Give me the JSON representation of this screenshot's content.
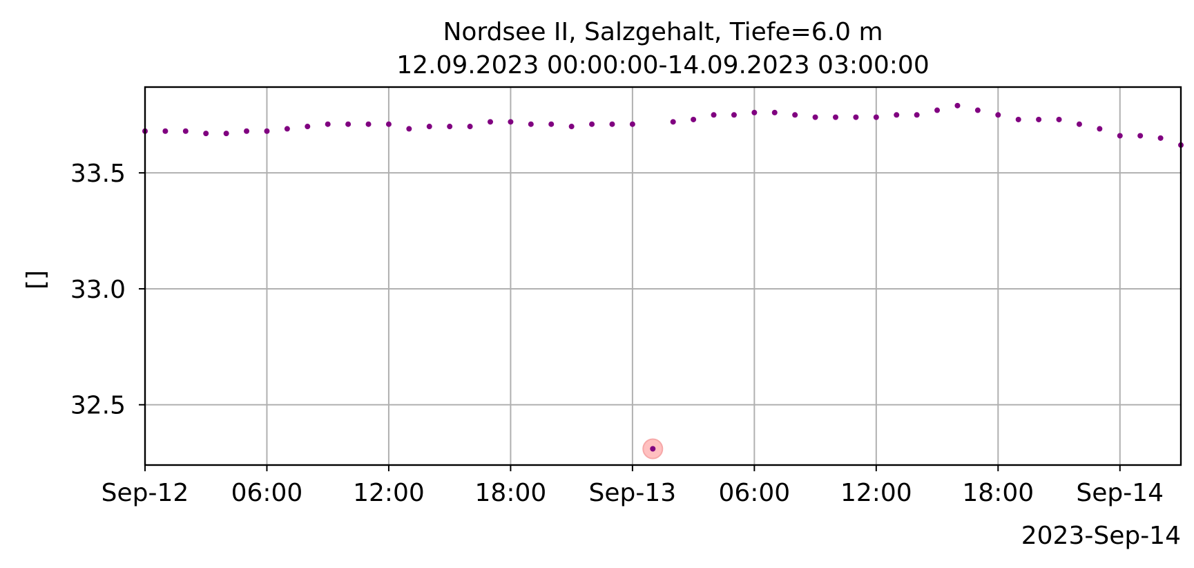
{
  "chart_data": {
    "type": "scatter",
    "title": "Nordsee II, Salzgehalt, Tiefe=6.0 m",
    "subtitle": "12.09.2023 00:00:00-14.09.2023 03:00:00",
    "xlabel": "",
    "ylabel": "[]",
    "x_offset_label": "2023-Sep-14",
    "xlim": [
      "2023-09-12 00:00",
      "2023-09-14 03:00"
    ],
    "ylim": [
      32.24,
      33.87
    ],
    "grid": true,
    "x_ticks": [
      {
        "value": "2023-09-12 00:00",
        "label": "Sep-12"
      },
      {
        "value": "2023-09-12 06:00",
        "label": "06:00"
      },
      {
        "value": "2023-09-12 12:00",
        "label": "12:00"
      },
      {
        "value": "2023-09-12 18:00",
        "label": "18:00"
      },
      {
        "value": "2023-09-13 00:00",
        "label": "Sep-13"
      },
      {
        "value": "2023-09-13 06:00",
        "label": "06:00"
      },
      {
        "value": "2023-09-13 12:00",
        "label": "12:00"
      },
      {
        "value": "2023-09-13 18:00",
        "label": "18:00"
      },
      {
        "value": "2023-09-14 00:00",
        "label": "Sep-14"
      }
    ],
    "y_ticks": [
      {
        "value": 32.5,
        "label": "32.5"
      },
      {
        "value": 33.0,
        "label": "33.0"
      },
      {
        "value": 33.5,
        "label": "33.5"
      }
    ],
    "series": [
      {
        "color": "#800080",
        "x": [
          "2023-09-12 00:00",
          "2023-09-12 01:00",
          "2023-09-12 02:00",
          "2023-09-12 03:00",
          "2023-09-12 04:00",
          "2023-09-12 05:00",
          "2023-09-12 06:00",
          "2023-09-12 07:00",
          "2023-09-12 08:00",
          "2023-09-12 09:00",
          "2023-09-12 10:00",
          "2023-09-12 11:00",
          "2023-09-12 12:00",
          "2023-09-12 13:00",
          "2023-09-12 14:00",
          "2023-09-12 15:00",
          "2023-09-12 16:00",
          "2023-09-12 17:00",
          "2023-09-12 18:00",
          "2023-09-12 19:00",
          "2023-09-12 20:00",
          "2023-09-12 21:00",
          "2023-09-12 22:00",
          "2023-09-12 23:00",
          "2023-09-13 00:00",
          "2023-09-13 01:00",
          "2023-09-13 02:00",
          "2023-09-13 03:00",
          "2023-09-13 04:00",
          "2023-09-13 05:00",
          "2023-09-13 06:00",
          "2023-09-13 07:00",
          "2023-09-13 08:00",
          "2023-09-13 09:00",
          "2023-09-13 10:00",
          "2023-09-13 11:00",
          "2023-09-13 12:00",
          "2023-09-13 13:00",
          "2023-09-13 14:00",
          "2023-09-13 15:00",
          "2023-09-13 16:00",
          "2023-09-13 17:00",
          "2023-09-13 18:00",
          "2023-09-13 19:00",
          "2023-09-13 20:00",
          "2023-09-13 21:00",
          "2023-09-13 22:00",
          "2023-09-13 23:00",
          "2023-09-14 00:00",
          "2023-09-14 01:00",
          "2023-09-14 02:00",
          "2023-09-14 03:00"
        ],
        "y": [
          33.68,
          33.68,
          33.68,
          33.67,
          33.67,
          33.68,
          33.68,
          33.69,
          33.7,
          33.71,
          33.71,
          33.71,
          33.71,
          33.69,
          33.7,
          33.7,
          33.7,
          33.72,
          33.72,
          33.71,
          33.71,
          33.7,
          33.71,
          33.71,
          33.71,
          32.31,
          33.72,
          33.73,
          33.75,
          33.75,
          33.76,
          33.76,
          33.75,
          33.74,
          33.74,
          33.74,
          33.74,
          33.75,
          33.75,
          33.77,
          33.79,
          33.77,
          33.75,
          33.73,
          33.73,
          33.73,
          33.71,
          33.69,
          33.66,
          33.66,
          33.65,
          33.62
        ]
      }
    ],
    "highlighted_points": [
      {
        "x": "2023-09-13 01:00",
        "y": 32.31,
        "color": "#ffb6b6"
      }
    ]
  }
}
